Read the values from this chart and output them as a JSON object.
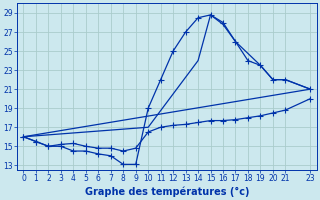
{
  "xlabel": "Graphe des températures (°c)",
  "bg_color": "#cce8ee",
  "grid_color": "#aacccc",
  "line_color": "#0033aa",
  "xlim": [
    -0.5,
    23.5
  ],
  "ylim": [
    12.5,
    30.0
  ],
  "xticks": [
    0,
    1,
    2,
    3,
    4,
    5,
    6,
    7,
    8,
    9,
    10,
    11,
    12,
    13,
    14,
    15,
    16,
    17,
    18,
    19,
    20,
    21,
    23
  ],
  "yticks": [
    13,
    15,
    17,
    19,
    21,
    23,
    25,
    27,
    29
  ],
  "line1_x": [
    0,
    1,
    2,
    3,
    4,
    5,
    6,
    7,
    8,
    9,
    10,
    11,
    12,
    13,
    14,
    15,
    16,
    17,
    18,
    19,
    20,
    21,
    23
  ],
  "line1_y": [
    16.0,
    15.5,
    15.0,
    15.0,
    14.5,
    14.5,
    14.2,
    14.0,
    13.1,
    13.1,
    19.0,
    22.0,
    25.0,
    27.0,
    28.5,
    28.8,
    28.0,
    26.0,
    24.0,
    23.5,
    22.0,
    22.0,
    21.0
  ],
  "line2_x": [
    0,
    1,
    2,
    3,
    4,
    5,
    6,
    7,
    8,
    9,
    10,
    11,
    12,
    13,
    14,
    15,
    16,
    17,
    18,
    19,
    20,
    21,
    23
  ],
  "line2_y": [
    16.0,
    15.5,
    15.0,
    15.2,
    15.3,
    15.0,
    14.8,
    14.8,
    14.5,
    14.8,
    16.5,
    17.0,
    17.2,
    17.3,
    17.5,
    17.7,
    17.7,
    17.8,
    18.0,
    18.2,
    18.5,
    18.8,
    20.0
  ],
  "line3_x": [
    0,
    10,
    14,
    15,
    16,
    17,
    19,
    20,
    21,
    23
  ],
  "line3_y": [
    16.0,
    17.0,
    24.0,
    28.8,
    27.8,
    26.0,
    23.5,
    22.0,
    22.0,
    21.0
  ],
  "line4_x": [
    0,
    23
  ],
  "line4_y": [
    16.0,
    21.0
  ]
}
